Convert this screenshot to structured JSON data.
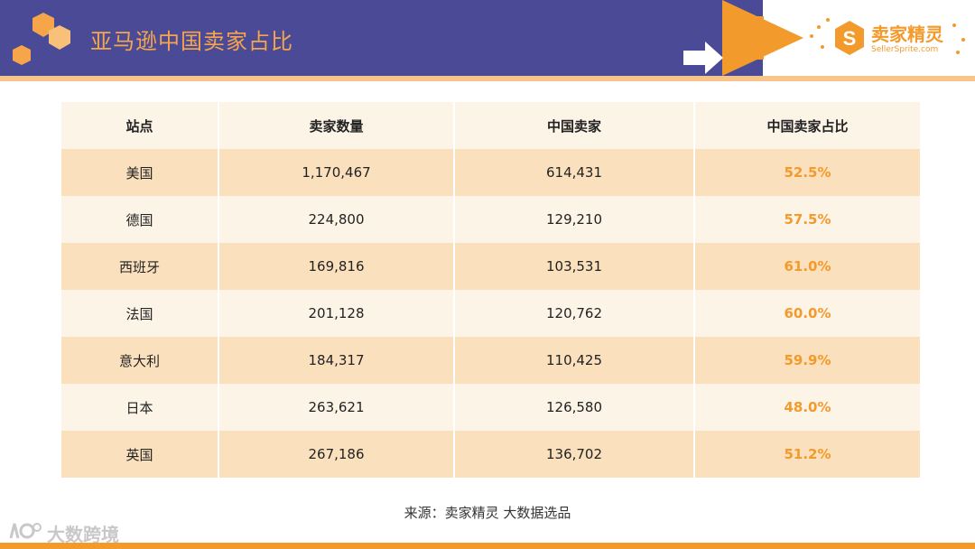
{
  "header": {
    "title": "亚马逊中国卖家占比"
  },
  "logo": {
    "name": "卖家精灵",
    "site": "SellerSprite.com"
  },
  "table": {
    "headers": [
      "站点",
      "卖家数量",
      "中国卖家",
      "中国卖家占比"
    ],
    "rows": [
      [
        "美国",
        "1,170,467",
        "614,431",
        "52.5%"
      ],
      [
        "德国",
        "224,800",
        "129,210",
        "57.5%"
      ],
      [
        "西班牙",
        "169,816",
        "103,531",
        "61.0%"
      ],
      [
        "法国",
        "201,128",
        "120,762",
        "60.0%"
      ],
      [
        "意大利",
        "184,317",
        "110,425",
        "59.9%"
      ],
      [
        "日本",
        "263,621",
        "126,580",
        "48.0%"
      ],
      [
        "英国",
        "267,186",
        "136,702",
        "51.2%"
      ]
    ]
  },
  "source": "来源：卖家精灵 大数据选品",
  "watermark": "大数跨境",
  "colors": {
    "header_band": "#4a4a96",
    "accent": "#f39a2c",
    "row_dark": "#fbe0bd",
    "row_light": "#fdf4e8"
  }
}
